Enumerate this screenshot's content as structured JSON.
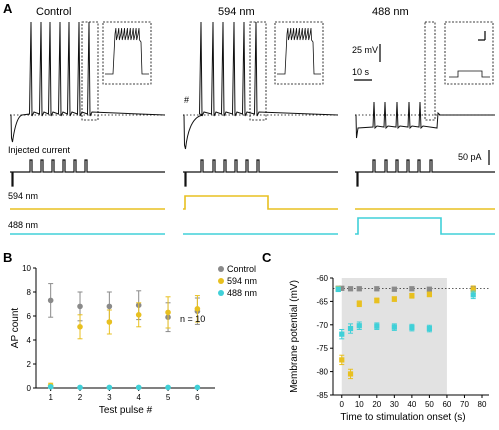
{
  "colors": {
    "control": "#8a8a8a",
    "nm594": "#e8c020",
    "nm488": "#40d0d8",
    "trace": "#111111",
    "shade": "#e2e2e2"
  },
  "panelA": {
    "letter": "A",
    "columns": [
      {
        "title": "Control"
      },
      {
        "title": "594 nm"
      },
      {
        "title": "488 nm"
      }
    ],
    "marker": "#",
    "scale_mv": "25 mV",
    "scale_s": "10 s",
    "scale_pa": "50 pA",
    "injected_label": "Injected current",
    "light1_label": "594 nm",
    "light2_label": "488 nm"
  },
  "panelB": {
    "letter": "B",
    "n_label": "n = 10",
    "chart_data": {
      "type": "scatter",
      "x": [
        1,
        2,
        3,
        4,
        5,
        6
      ],
      "xticks": [
        "1",
        "2",
        "3",
        "4",
        "5",
        "6"
      ],
      "yticks": [
        "0",
        "2",
        "4",
        "6",
        "8",
        "10"
      ],
      "xlabel": "Test pulse #",
      "ylabel": "AP count",
      "xlim": [
        0.5,
        6.6
      ],
      "ylim": [
        0,
        10
      ],
      "legend_position": "top-right",
      "series": [
        {
          "name": "Control",
          "color": "#8a8a8a",
          "values": [
            7.3,
            6.8,
            6.8,
            6.9,
            5.9,
            6.4
          ],
          "err": [
            1.4,
            1.2,
            1.2,
            1.2,
            1.2,
            1.1
          ]
        },
        {
          "name": "594 nm",
          "color": "#e8c020",
          "values": [
            0.2,
            5.1,
            5.5,
            6.1,
            6.3,
            6.6
          ],
          "err": [
            0.2,
            1.0,
            1.0,
            1.0,
            1.3,
            1.1
          ]
        },
        {
          "name": "488 nm",
          "color": "#40d0d8",
          "values": [
            0.1,
            0.05,
            0.05,
            0.05,
            0.05,
            0.05
          ],
          "err": [
            0.1,
            0.05,
            0.05,
            0.05,
            0.05,
            0.05
          ]
        }
      ]
    }
  },
  "panelC": {
    "letter": "C",
    "chart_data": {
      "type": "scatter",
      "xticks": [
        "0",
        "10",
        "20",
        "30",
        "40",
        "50",
        "60",
        "70",
        "80"
      ],
      "xtick_values": [
        0,
        10,
        20,
        30,
        40,
        50,
        60,
        70,
        80
      ],
      "yticks": [
        "-60",
        "-65",
        "-70",
        "-75",
        "-80",
        "-85"
      ],
      "ytick_values": [
        -60,
        -65,
        -70,
        -75,
        -80,
        -85
      ],
      "xlabel": "Time to stimulation onset (s)",
      "ylabel": "Membrane potential (mV)",
      "xlim": [
        -5,
        84
      ],
      "ylim": [
        -85,
        -60
      ],
      "shaded_x": [
        0,
        60
      ],
      "baseline": -62.2,
      "series": [
        {
          "name": "Control",
          "color": "#8a8a8a",
          "x": [
            -2,
            0,
            5,
            10,
            20,
            30,
            40,
            50,
            75
          ],
          "y": [
            -62.2,
            -62.2,
            -62.3,
            -62.3,
            -62.3,
            -62.4,
            -62.3,
            -62.4,
            -62.3
          ],
          "err": [
            0.4,
            0.4,
            0.4,
            0.4,
            0.4,
            0.4,
            0.4,
            0.4,
            0.4
          ]
        },
        {
          "name": "594 nm",
          "color": "#e8c020",
          "x": [
            -2,
            0,
            5,
            10,
            20,
            30,
            40,
            50,
            75
          ],
          "y": [
            -62.3,
            -77.5,
            -80.5,
            -65.5,
            -64.8,
            -64.5,
            -63.8,
            -63.5,
            -62.5
          ],
          "err": [
            0.5,
            1.0,
            1.0,
            0.6,
            0.5,
            0.5,
            0.5,
            0.5,
            0.8
          ]
        },
        {
          "name": "488 nm",
          "color": "#40d0d8",
          "x": [
            -2,
            0,
            5,
            10,
            20,
            30,
            40,
            50,
            75
          ],
          "y": [
            -62.4,
            -72.0,
            -70.8,
            -70.2,
            -70.3,
            -70.5,
            -70.6,
            -70.8,
            -63.6
          ],
          "err": [
            0.5,
            1.0,
            1.0,
            0.8,
            0.7,
            0.7,
            0.7,
            0.7,
            0.8
          ]
        }
      ]
    }
  }
}
